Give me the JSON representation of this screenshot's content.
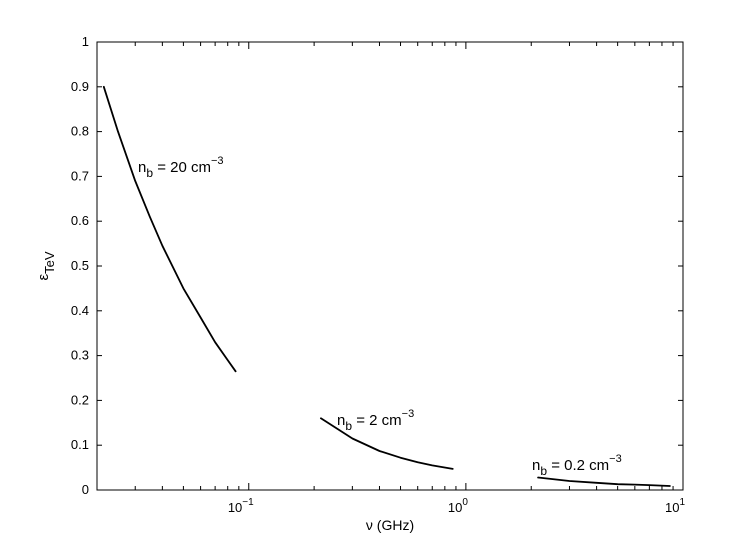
{
  "chart_data": {
    "type": "line",
    "xscale": "log",
    "xlim": [
      0.02,
      10
    ],
    "ylim": [
      0,
      1
    ],
    "grid": false,
    "xlabel": "ν (GHz)",
    "ylabel": {
      "base": "ε",
      "sub": "TeV"
    },
    "yticks": [
      "0",
      "0.1",
      "0.2",
      "0.3",
      "0.4",
      "0.5",
      "0.6",
      "0.7",
      "0.8",
      "0.9",
      "1"
    ],
    "xticks": [
      {
        "value": 0.1,
        "base": "10",
        "exp": "−1"
      },
      {
        "value": 1,
        "base": "10",
        "exp": "0"
      },
      {
        "value": 10,
        "base": "10",
        "exp": "1"
      }
    ],
    "series": [
      {
        "label": {
          "base": "n",
          "sub": "b",
          "mid": " = 20 cm",
          "sup": "−3"
        },
        "x": [
          0.0215,
          0.025,
          0.03,
          0.035,
          0.04,
          0.05,
          0.06,
          0.07,
          0.08,
          0.087
        ],
        "y": [
          0.9,
          0.8,
          0.69,
          0.61,
          0.545,
          0.45,
          0.385,
          0.33,
          0.29,
          0.265
        ]
      },
      {
        "label": {
          "base": "n",
          "sub": "b",
          "mid": " = 2 cm",
          "sup": "−3"
        },
        "x": [
          0.215,
          0.3,
          0.4,
          0.5,
          0.6,
          0.7,
          0.87
        ],
        "y": [
          0.16,
          0.115,
          0.087,
          0.072,
          0.062,
          0.055,
          0.047
        ]
      },
      {
        "label": {
          "base": "n",
          "sub": "b",
          "mid": " = 0.2 cm",
          "sup": "−3"
        },
        "x": [
          2.15,
          3,
          4,
          5,
          6,
          7,
          8.7
        ],
        "y": [
          0.028,
          0.02,
          0.016,
          0.013,
          0.012,
          0.011,
          0.009
        ]
      }
    ]
  }
}
